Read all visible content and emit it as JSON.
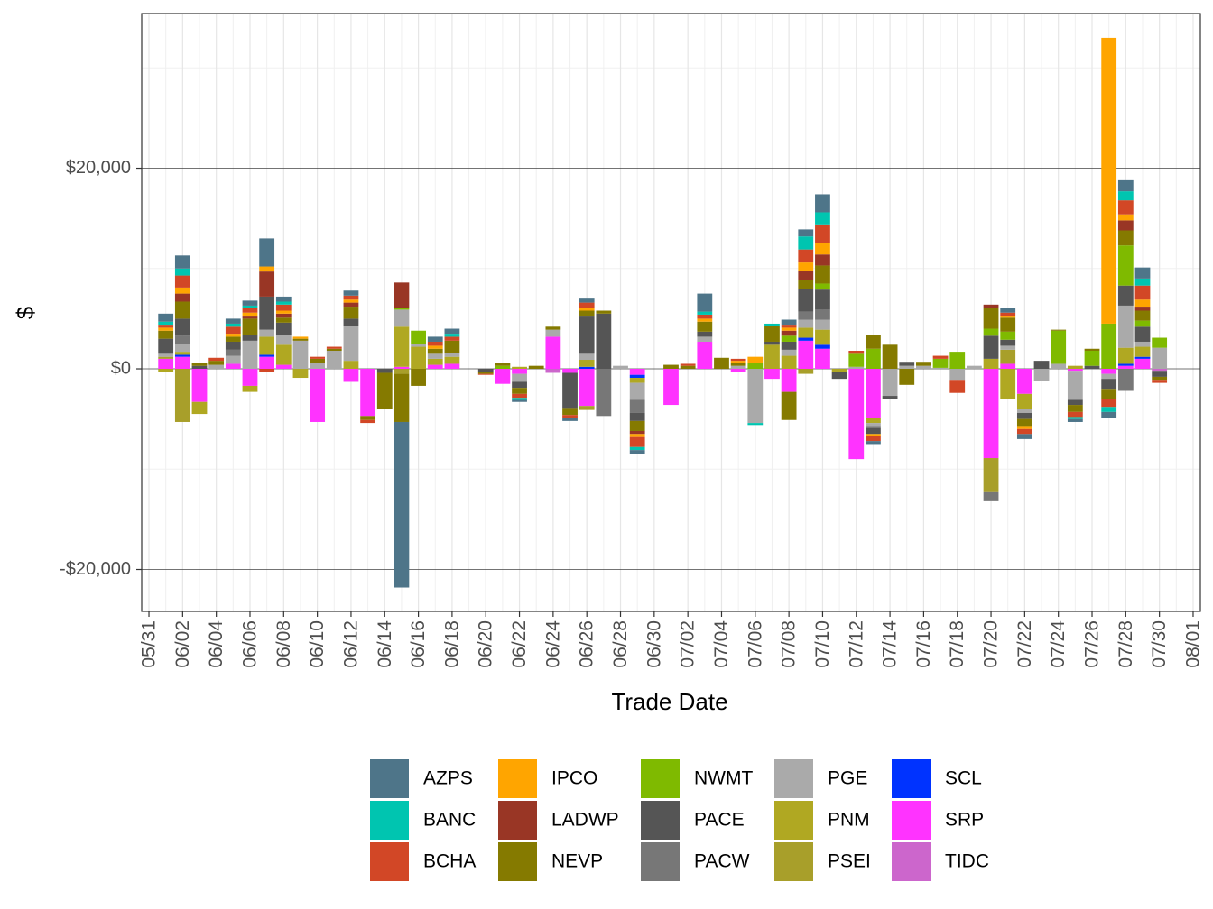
{
  "chart_data": {
    "type": "bar",
    "stacked": true,
    "xlabel": "Trade Date",
    "ylabel": "$",
    "x": [
      "06/01",
      "06/02",
      "06/03",
      "06/04",
      "06/05",
      "06/06",
      "06/07",
      "06/08",
      "06/09",
      "06/10",
      "06/11",
      "06/12",
      "06/13",
      "06/14",
      "06/15",
      "06/16",
      "06/17",
      "06/18",
      "06/20",
      "06/21",
      "06/22",
      "06/23",
      "06/24",
      "06/25",
      "06/26",
      "06/27",
      "06/28",
      "06/29",
      "07/01",
      "07/02",
      "07/03",
      "07/04",
      "07/05",
      "07/06",
      "07/07",
      "07/08",
      "07/09",
      "07/10",
      "07/11",
      "07/12",
      "07/13",
      "07/14",
      "07/15",
      "07/16",
      "07/17",
      "07/18",
      "07/19",
      "07/20",
      "07/21",
      "07/22",
      "07/23",
      "07/24",
      "07/25",
      "07/26",
      "07/27",
      "07/28",
      "07/29",
      "07/30"
    ],
    "xlim": [
      "05/31",
      "08/01"
    ],
    "xticks": [
      "05/31",
      "06/02",
      "06/04",
      "06/06",
      "06/08",
      "06/10",
      "06/12",
      "06/14",
      "06/16",
      "06/18",
      "06/20",
      "06/22",
      "06/24",
      "06/26",
      "06/28",
      "06/30",
      "07/02",
      "07/04",
      "07/06",
      "07/08",
      "07/10",
      "07/12",
      "07/14",
      "07/16",
      "07/18",
      "07/20",
      "07/22",
      "07/24",
      "07/26",
      "07/28",
      "07/30",
      "08/01"
    ],
    "ylim": [
      -24180,
      35420
    ],
    "yticks": [
      {
        "value": -20000,
        "label": "-$20,000"
      },
      {
        "value": 0,
        "label": "$0"
      },
      {
        "value": 20000,
        "label": "$20,000"
      }
    ],
    "grid": true,
    "legend": "bottom",
    "series": [
      {
        "name": "AZPS",
        "color": "#4e7589",
        "values": [
          800,
          1300,
          0,
          0,
          500,
          500,
          2800,
          500,
          0,
          0,
          0,
          500,
          0,
          0,
          -16500,
          0,
          500,
          500,
          0,
          0,
          -200,
          0,
          0,
          -300,
          400,
          0,
          0,
          -400,
          0,
          0,
          1800,
          0,
          0,
          0,
          0,
          500,
          700,
          1800,
          0,
          0,
          -300,
          0,
          0,
          0,
          0,
          0,
          0,
          0,
          500,
          -500,
          0,
          0,
          -300,
          0,
          -600,
          1100,
          1100,
          0
        ]
      },
      {
        "name": "BANC",
        "color": "#00c5b0",
        "values": [
          300,
          700,
          0,
          0,
          300,
          200,
          0,
          300,
          0,
          0,
          0,
          0,
          0,
          0,
          0,
          0,
          0,
          300,
          0,
          0,
          -200,
          0,
          0,
          0,
          0,
          0,
          0,
          -300,
          0,
          0,
          300,
          0,
          0,
          -200,
          200,
          0,
          1300,
          1200,
          0,
          0,
          0,
          0,
          0,
          0,
          0,
          0,
          0,
          0,
          0,
          0,
          0,
          0,
          -200,
          0,
          -500,
          900,
          700,
          0
        ]
      },
      {
        "name": "BCHA",
        "color": "#d24726",
        "values": [
          300,
          1200,
          0,
          300,
          700,
          500,
          -300,
          600,
          0,
          200,
          200,
          400,
          -300,
          0,
          0,
          0,
          400,
          400,
          -100,
          0,
          -400,
          0,
          0,
          -300,
          500,
          0,
          0,
          -1000,
          0,
          200,
          400,
          0,
          200,
          0,
          0,
          300,
          1300,
          1900,
          0,
          300,
          -500,
          0,
          0,
          0,
          300,
          -1300,
          0,
          0,
          300,
          -500,
          0,
          0,
          -500,
          0,
          -800,
          1400,
          1400,
          -300
        ]
      },
      {
        "name": "IPCO",
        "color": "#ffa500",
        "values": [
          300,
          600,
          0,
          0,
          300,
          300,
          500,
          300,
          200,
          0,
          0,
          300,
          0,
          0,
          0,
          0,
          300,
          0,
          0,
          0,
          0,
          0,
          0,
          0,
          300,
          0,
          0,
          -300,
          0,
          0,
          300,
          0,
          200,
          600,
          0,
          300,
          800,
          1100,
          0,
          0,
          -200,
          0,
          0,
          0,
          0,
          0,
          0,
          0,
          200,
          -300,
          0,
          0,
          0,
          0,
          28500,
          600,
          700,
          0
        ]
      },
      {
        "name": "LADWP",
        "color": "#993625",
        "values": [
          0,
          800,
          0,
          0,
          0,
          300,
          2500,
          400,
          0,
          0,
          0,
          400,
          0,
          0,
          2500,
          0,
          0,
          0,
          0,
          0,
          0,
          0,
          0,
          0,
          0,
          0,
          0,
          -300,
          0,
          0,
          0,
          0,
          0,
          0,
          0,
          500,
          900,
          1100,
          0,
          0,
          0,
          0,
          0,
          0,
          0,
          0,
          0,
          300,
          0,
          0,
          0,
          0,
          0,
          0,
          0,
          1000,
          400,
          0
        ]
      },
      {
        "name": "NEVP",
        "color": "#857a00",
        "values": [
          800,
          1700,
          300,
          400,
          500,
          1600,
          0,
          500,
          200,
          400,
          200,
          1200,
          -400,
          -3600,
          -4800,
          -1700,
          500,
          1200,
          -200,
          300,
          -600,
          300,
          300,
          -700,
          500,
          300,
          0,
          -1000,
          400,
          300,
          1000,
          1100,
          300,
          0,
          1600,
          -2800,
          900,
          1800,
          0,
          0,
          1400,
          2400,
          -1600,
          400,
          0,
          0,
          0,
          2100,
          1400,
          -700,
          0,
          100,
          -700,
          200,
          -1000,
          1500,
          1000,
          -300
        ]
      },
      {
        "name": "NWMT",
        "color": "#7fba00",
        "values": [
          0,
          0,
          0,
          0,
          0,
          0,
          0,
          0,
          0,
          0,
          0,
          0,
          0,
          0,
          200,
          1300,
          0,
          0,
          0,
          300,
          0,
          0,
          0,
          0,
          0,
          0,
          0,
          0,
          0,
          0,
          0,
          0,
          0,
          600,
          0,
          600,
          0,
          600,
          0,
          1300,
          2000,
          0,
          0,
          0,
          900,
          1700,
          0,
          700,
          800,
          0,
          0,
          3300,
          0,
          1500,
          4500,
          4000,
          600,
          1000
        ]
      },
      {
        "name": "PACE",
        "color": "#555555",
        "values": [
          1500,
          1700,
          300,
          0,
          800,
          600,
          3300,
          1200,
          0,
          0,
          0,
          700,
          0,
          -400,
          0,
          0,
          0,
          0,
          -300,
          0,
          -600,
          0,
          0,
          -3500,
          3800,
          5500,
          0,
          -800,
          0,
          0,
          500,
          0,
          0,
          0,
          300,
          800,
          2300,
          2000,
          -700,
          0,
          -600,
          -300,
          400,
          0,
          0,
          0,
          0,
          2300,
          600,
          -600,
          800,
          0,
          -500,
          300,
          -1000,
          2000,
          1500,
          -600
        ]
      },
      {
        "name": "PACW",
        "color": "#777777",
        "values": [
          0,
          800,
          0,
          0,
          600,
          0,
          0,
          0,
          0,
          0,
          0,
          0,
          0,
          0,
          0,
          0,
          0,
          0,
          0,
          0,
          0,
          0,
          0,
          0,
          0,
          -4700,
          0,
          -1300,
          0,
          0,
          0,
          0,
          0,
          0,
          0,
          0,
          800,
          1000,
          0,
          0,
          -200,
          0,
          0,
          0,
          0,
          0,
          0,
          -900,
          0,
          0,
          0,
          0,
          0,
          0,
          0,
          -2200,
          0,
          0
        ]
      },
      {
        "name": "PGE",
        "color": "#aaaaaa",
        "values": [
          300,
          800,
          0,
          400,
          800,
          2800,
          700,
          1000,
          2800,
          600,
          1800,
          3500,
          0,
          0,
          1700,
          300,
          500,
          400,
          0,
          0,
          -800,
          0,
          700,
          0,
          600,
          0,
          300,
          -1700,
          0,
          0,
          500,
          0,
          300,
          -5400,
          0,
          600,
          800,
          1000,
          0,
          200,
          -300,
          -2700,
          300,
          300,
          100,
          -1100,
          300,
          0,
          400,
          -400,
          -1200,
          500,
          -2900,
          0,
          -500,
          4200,
          500,
          2100
        ]
      },
      {
        "name": "PNM",
        "color": "#b0a822",
        "values": [
          -300,
          300,
          -1200,
          0,
          0,
          -600,
          1800,
          2000,
          -900,
          0,
          0,
          800,
          0,
          0,
          4000,
          2200,
          600,
          700,
          0,
          0,
          200,
          0,
          0,
          0,
          700,
          0,
          0,
          -500,
          0,
          0,
          0,
          0,
          0,
          0,
          2400,
          1300,
          1000,
          1500,
          -300,
          0,
          -500,
          0,
          0,
          0,
          0,
          0,
          0,
          1000,
          -3000,
          -1500,
          0,
          0,
          300,
          0,
          0,
          1600,
          1000,
          0
        ]
      },
      {
        "name": "PSEI",
        "color": "#a89f2a",
        "values": [
          200,
          -5300,
          0,
          0,
          0,
          0,
          0,
          0,
          0,
          0,
          0,
          0,
          0,
          0,
          -500,
          0,
          0,
          0,
          0,
          0,
          0,
          0,
          0,
          0,
          -400,
          0,
          0,
          0,
          0,
          0,
          0,
          0,
          0,
          0,
          0,
          0,
          -500,
          0,
          0,
          0,
          0,
          0,
          0,
          0,
          0,
          0,
          0,
          -3400,
          1400,
          0,
          0,
          0,
          0,
          0,
          0,
          0,
          0,
          0
        ]
      },
      {
        "name": "SCL",
        "color": "#0033ff",
        "values": [
          0,
          200,
          0,
          0,
          0,
          0,
          200,
          0,
          0,
          0,
          0,
          0,
          0,
          0,
          0,
          0,
          0,
          0,
          0,
          0,
          0,
          0,
          0,
          0,
          200,
          0,
          0,
          -300,
          0,
          0,
          0,
          0,
          0,
          0,
          0,
          0,
          300,
          400,
          0,
          0,
          0,
          0,
          0,
          0,
          0,
          0,
          0,
          0,
          0,
          0,
          0,
          0,
          0,
          0,
          0,
          200,
          200,
          0
        ]
      },
      {
        "name": "SRP",
        "color": "#ff33ff",
        "values": [
          1000,
          1200,
          -3300,
          0,
          500,
          -1700,
          1200,
          400,
          0,
          -5300,
          0,
          -1300,
          -4700,
          0,
          200,
          0,
          400,
          500,
          0,
          -1500,
          -500,
          0,
          3200,
          -400,
          -3700,
          0,
          0,
          -600,
          -3600,
          0,
          2700,
          0,
          -300,
          0,
          -1000,
          -2300,
          2800,
          2000,
          0,
          -9000,
          -4900,
          0,
          0,
          0,
          0,
          0,
          0,
          -8900,
          500,
          -2500,
          0,
          0,
          -200,
          0,
          -500,
          300,
          1000,
          0
        ]
      },
      {
        "name": "TIDC",
        "color": "#cc66cc",
        "values": [
          0,
          0,
          0,
          0,
          0,
          0,
          0,
          0,
          0,
          0,
          0,
          0,
          0,
          0,
          0,
          0,
          0,
          0,
          0,
          0,
          0,
          0,
          -400,
          0,
          0,
          0,
          0,
          0,
          0,
          0,
          0,
          0,
          0,
          0,
          0,
          0,
          0,
          0,
          0,
          0,
          0,
          0,
          0,
          0,
          0,
          0,
          0,
          0,
          0,
          0,
          0,
          0,
          0,
          0,
          0,
          0,
          0,
          -200
        ]
      }
    ]
  }
}
